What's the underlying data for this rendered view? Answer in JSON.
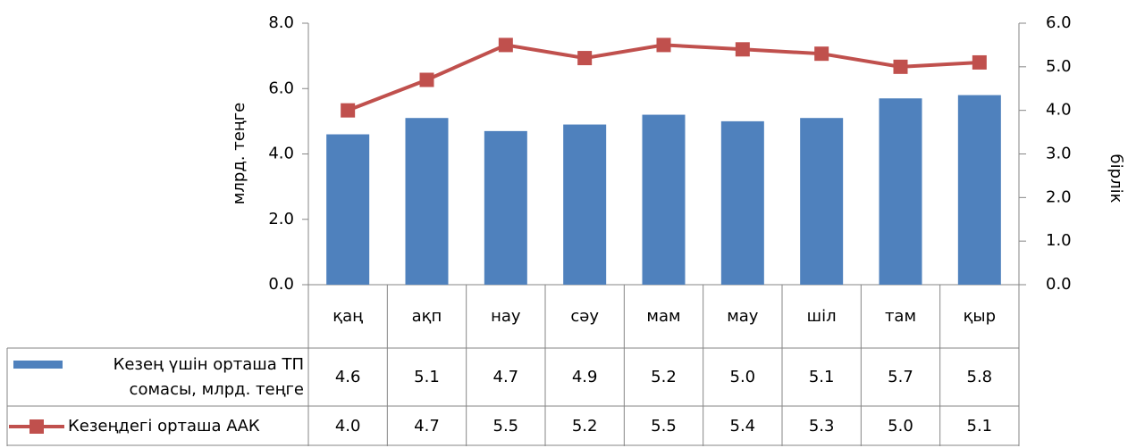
{
  "chart_data": {
    "type": "bar_line",
    "categories": [
      "қаң",
      "ақп",
      "нау",
      "сәу",
      "мам",
      "мау",
      "шіл",
      "там",
      "қыр"
    ],
    "series": [
      {
        "name": "Кезең үшін орташа ТП сомасы, млрд. теңге",
        "color": "#4f81bd",
        "type": "bar",
        "values": [
          4.6,
          5.1,
          4.7,
          4.9,
          5.2,
          5.0,
          5.1,
          5.7,
          5.8
        ],
        "value_labels": [
          "4.6",
          "5.1",
          "4.7",
          "4.9",
          "5.2",
          "5.0",
          "5.1",
          "5.7",
          "5.8"
        ]
      },
      {
        "name": "Кезеңдегі орташа ААК",
        "color": "#c0504d",
        "type": "line",
        "axis": "y2",
        "values": [
          4.0,
          4.7,
          5.5,
          5.2,
          5.5,
          5.4,
          5.3,
          5.0,
          5.1
        ],
        "value_labels": [
          "4.0",
          "4.7",
          "5.5",
          "5.2",
          "5.5",
          "5.4",
          "5.3",
          "5.0",
          "5.1"
        ]
      }
    ],
    "y_label": "млрд. теңге",
    "y2_label": "бірлік",
    "ylim": [
      0,
      8
    ],
    "yticks": [
      {
        "value": 0,
        "label": "0.0"
      },
      {
        "value": 2,
        "label": "2.0"
      },
      {
        "value": 4,
        "label": "4.0"
      },
      {
        "value": 6,
        "label": "6.0"
      },
      {
        "value": 8,
        "label": "8.0"
      }
    ],
    "y2lim": [
      0,
      6
    ],
    "y2ticks": [
      {
        "value": 0,
        "label": "0.0"
      },
      {
        "value": 1,
        "label": "1.0"
      },
      {
        "value": 2,
        "label": "2.0"
      },
      {
        "value": 3,
        "label": "3.0"
      },
      {
        "value": 4,
        "label": "4.0"
      },
      {
        "value": 5,
        "label": "5.0"
      },
      {
        "value": 6,
        "label": "6.0"
      }
    ]
  }
}
